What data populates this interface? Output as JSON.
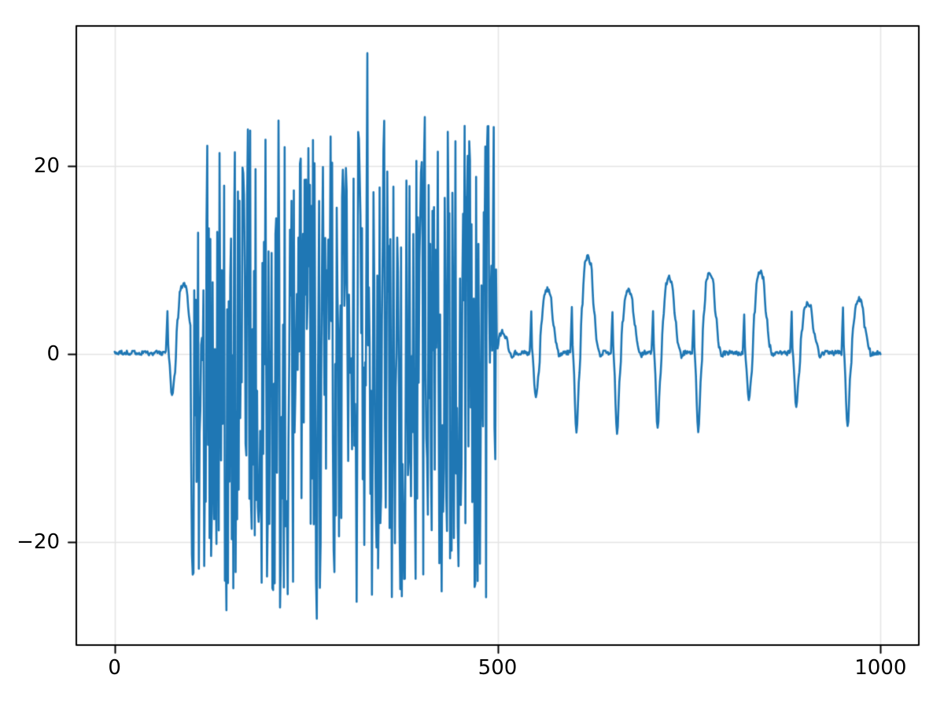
{
  "chart_data": {
    "type": "line",
    "title": "",
    "xlabel": "",
    "ylabel": "",
    "legend": false,
    "grid": true,
    "background_color": "#ffffff",
    "grid_color": "#e4e4e4",
    "spine_color": "#000000",
    "tick_color": "#000000",
    "line_color": "#1f77b4",
    "line_width": 2.6,
    "x_ticks": [
      0,
      500,
      1000
    ],
    "x_tick_labels": [
      "0",
      "500",
      "1000"
    ],
    "y_ticks": [
      20,
      0,
      -20
    ],
    "y_tick_labels": [
      "20",
      "0",
      "−20"
    ],
    "xlim": [
      -50,
      1050
    ],
    "ylim": [
      -31.0,
      34.9
    ],
    "x_range_data": [
      0,
      1000
    ],
    "n_samples": 1001,
    "seed": 20,
    "description": "Single 1D signal: flat near 0 for x<69, one clean cycle near x=69, large random noise burst for x in [100,500) spanning roughly -26..25 with an outlier spike to 32 at x=330, then a clean quasi-periodic spike/trough/hump waveform (period ~53) from x=500 to 1000.",
    "signal": {
      "baseline": {
        "mean": 0.1,
        "noise": 0.5
      },
      "noise_burst": {
        "start": 100,
        "end": 500,
        "min": -26,
        "max": 25
      },
      "outliers": [
        [
          330,
          32.0
        ],
        [
          264,
          -28.2
        ],
        [
          146,
          -27.3
        ],
        [
          216,
          -27.0
        ],
        [
          316,
          -26.4
        ],
        [
          352,
          24.8
        ],
        [
          405,
          25.2
        ]
      ],
      "cycle_shape": [
        [
          -2,
          0
        ],
        [
          0,
          "spike",
          1
        ],
        [
          1.5,
          -0.5
        ],
        [
          6,
          "trough",
          1
        ],
        [
          10,
          -2
        ],
        [
          13,
          "hump",
          0.45
        ],
        [
          17,
          "hump",
          0.92
        ],
        [
          21,
          "hump",
          1
        ],
        [
          25,
          "hump",
          0.92
        ],
        [
          29,
          "hump",
          0.45
        ],
        [
          33,
          0.8
        ],
        [
          37,
          -0.3
        ],
        [
          40,
          0
        ]
      ],
      "cycles": [
        {
          "x": 69,
          "spike": 4.4,
          "trough": -4.5,
          "hump": 7.4
        },
        {
          "x": 544,
          "spike": 4.4,
          "trough": -4.9,
          "hump": 6.8
        },
        {
          "x": 597,
          "spike": 4.9,
          "trough": -8.3,
          "hump": 10.3
        },
        {
          "x": 650,
          "spike": 4.3,
          "trough": -8.7,
          "hump": 6.7
        },
        {
          "x": 703,
          "spike": 4.4,
          "trough": -8.0,
          "hump": 8.0
        },
        {
          "x": 756,
          "spike": 4.5,
          "trough": -8.5,
          "hump": 8.6
        },
        {
          "x": 822,
          "spike": 4.3,
          "trough": -5.1,
          "hump": 8.7
        },
        {
          "x": 884,
          "spike": 4.2,
          "trough": -5.7,
          "hump": 5.3
        },
        {
          "x": 951,
          "spike": 4.7,
          "trough": -8.0,
          "hump": 5.7
        }
      ],
      "post_noise_bump": [
        [
          500,
          0.3
        ],
        [
          503,
          1.9
        ],
        [
          506,
          2.3
        ],
        [
          509,
          1.6
        ],
        [
          511,
          1.9
        ],
        [
          515,
          0.3
        ],
        [
          519,
          -0.3
        ],
        [
          523,
          0
        ]
      ]
    }
  }
}
